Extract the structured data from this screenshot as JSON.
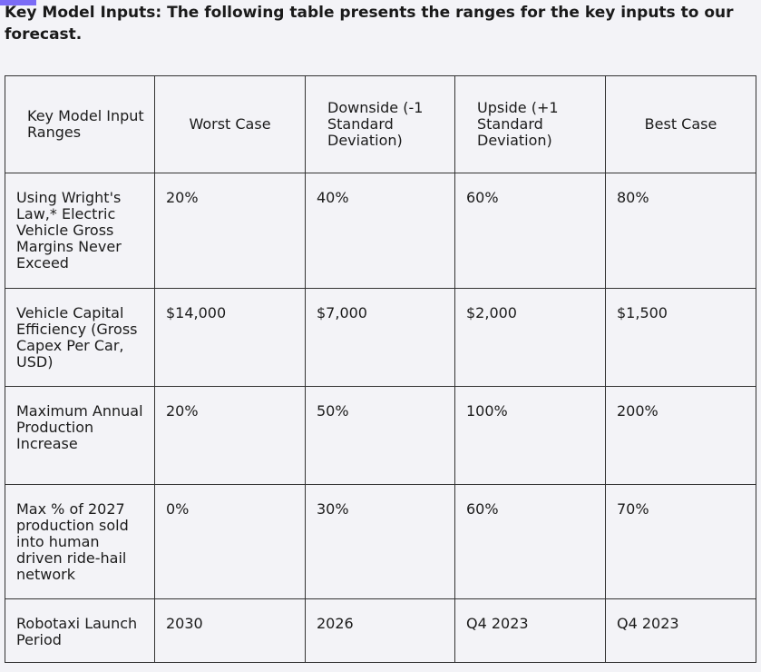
{
  "caption": "Key Model Inputs: The following table presents the ranges for the key inputs to our forecast.",
  "table": {
    "headers": [
      "Key Model Input Ranges",
      "Worst Case",
      "Downside (-1 Standard Deviation)",
      "Upside (+1 Standard Deviation)",
      "Best Case"
    ],
    "rows": [
      {
        "label": "Using Wright's Law,* Electric Vehicle Gross Margins Never Exceed",
        "values": [
          "20%",
          "40%",
          "60%",
          "80%"
        ]
      },
      {
        "label": "Vehicle Capital Efficiency (Gross Capex Per Car, USD)",
        "values": [
          "$14,000",
          "$7,000",
          "$2,000",
          "$1,500"
        ]
      },
      {
        "label": "Maximum Annual Production Increase",
        "values": [
          "20%",
          "50%",
          "100%",
          "200%"
        ]
      },
      {
        "label": "Max % of 2027 production sold into human driven ride-hail network",
        "values": [
          "0%",
          "30%",
          "60%",
          "70%"
        ]
      },
      {
        "label": "Robotaxi Launch Period",
        "values": [
          "2030",
          "2026",
          "Q4 2023",
          "Q4 2023"
        ]
      }
    ]
  },
  "colors": {
    "background": "#f3f3f7",
    "border": "#333333",
    "accent": "#7b6cf6"
  }
}
